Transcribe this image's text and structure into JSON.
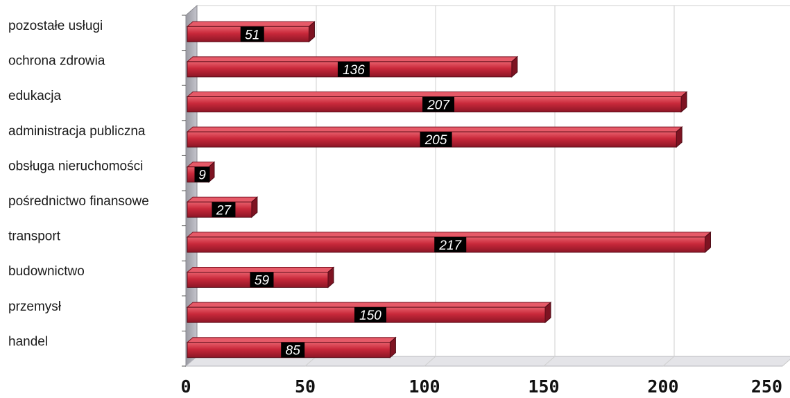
{
  "chart_data": {
    "type": "bar",
    "orientation": "horizontal",
    "categories": [
      "pozostałe usługi",
      "ochrona zdrowia",
      "edukacja",
      "administracja publiczna",
      "obsługa nieruchomości",
      "pośrednictwo finansowe",
      "transport",
      "budownictwo",
      "przemysł",
      "handel"
    ],
    "values": [
      51,
      136,
      207,
      205,
      9,
      27,
      217,
      59,
      150,
      85
    ],
    "xlim": [
      0,
      250
    ],
    "ticks": [
      "0",
      "50",
      "100",
      "150",
      "200",
      "250"
    ],
    "grid": true,
    "legend": "none",
    "colors": {
      "bar": "#c8283a",
      "bar_dark": "#7e1322",
      "bar_light": "#e65a68",
      "label_bg": "#000000",
      "label_text": "#ffffff",
      "grid": "#cfcfcf",
      "wall": "#a8a8ae"
    }
  }
}
